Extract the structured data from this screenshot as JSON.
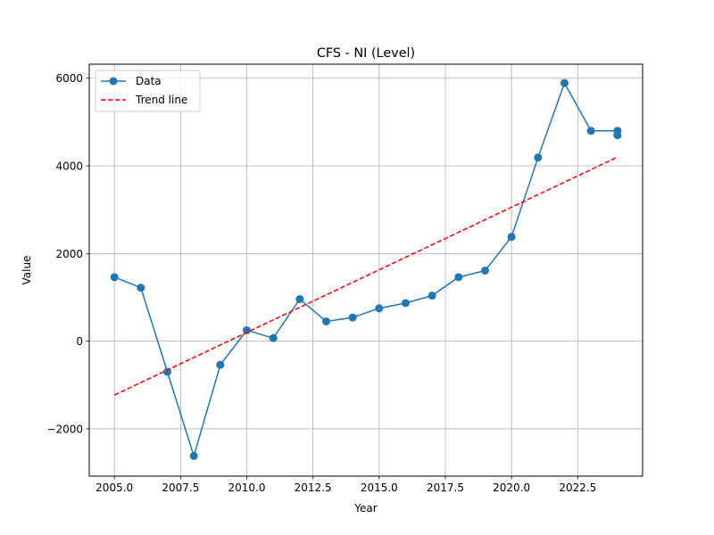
{
  "chart_data": {
    "type": "line",
    "title": "CFS - NI (Level)",
    "xlabel": "Year",
    "ylabel": "Value",
    "xlim": [
      2004.05,
      2024.95
    ],
    "ylim": [
      -3080,
      6320
    ],
    "grid": true,
    "legend_position": "upper-left",
    "x_ticks": [
      2005.0,
      2007.5,
      2010.0,
      2012.5,
      2015.0,
      2017.5,
      2020.0,
      2022.5
    ],
    "x_tick_labels": [
      "2005.0",
      "2007.5",
      "2010.0",
      "2012.5",
      "2015.0",
      "2017.5",
      "2020.0",
      "2022.5"
    ],
    "y_ticks": [
      -2000,
      0,
      2000,
      4000,
      6000
    ],
    "y_tick_labels": [
      "−2000",
      "0",
      "2000",
      "4000",
      "6000"
    ],
    "series": [
      {
        "name": "Data",
        "style": "line-marker",
        "color": "#1f77b4",
        "points": [
          {
            "x": 2005,
            "y": 1460
          },
          {
            "x": 2006,
            "y": 1220
          },
          {
            "x": 2007,
            "y": -700
          },
          {
            "x": 2008,
            "y": -2620
          },
          {
            "x": 2009,
            "y": -540
          },
          {
            "x": 2010,
            "y": 250
          },
          {
            "x": 2011,
            "y": 70
          },
          {
            "x": 2012,
            "y": 960
          },
          {
            "x": 2013,
            "y": 450
          },
          {
            "x": 2014,
            "y": 540
          },
          {
            "x": 2015,
            "y": 750
          },
          {
            "x": 2016,
            "y": 870
          },
          {
            "x": 2017,
            "y": 1040
          },
          {
            "x": 2018,
            "y": 1460
          },
          {
            "x": 2019,
            "y": 1610
          },
          {
            "x": 2020,
            "y": 2380
          },
          {
            "x": 2021,
            "y": 4190
          },
          {
            "x": 2022,
            "y": 5890
          },
          {
            "x": 2023,
            "y": 4800
          },
          {
            "x": 2024,
            "y": 4800
          },
          {
            "x": 2024,
            "y": 4700
          }
        ]
      },
      {
        "name": "Trend line",
        "style": "dashed",
        "color": "#ff0000",
        "points": [
          {
            "x": 2005,
            "y": -1230
          },
          {
            "x": 2024,
            "y": 4200
          }
        ]
      }
    ]
  }
}
